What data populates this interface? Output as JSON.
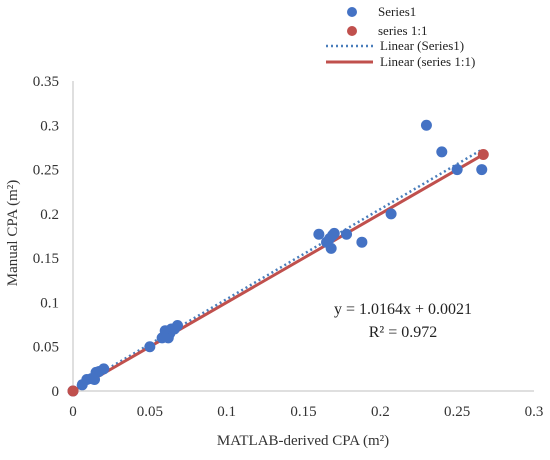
{
  "chart_data": {
    "type": "scatter",
    "xlabel": "MATLAB-derived CPA (m²)",
    "ylabel": "Manual CPA (m²)",
    "xlim": [
      0,
      0.3
    ],
    "ylim": [
      0,
      0.35
    ],
    "x_ticks": [
      "0",
      "0.05",
      "0.1",
      "0.15",
      "0.2",
      "0.25",
      "0.3"
    ],
    "y_ticks": [
      "0",
      "0.05",
      "0.1",
      "0.15",
      "0.2",
      "0.25",
      "0.3",
      "0.35"
    ],
    "grid": false,
    "legend_position": "top",
    "series": [
      {
        "name": "Series1",
        "kind": "markers",
        "color": "#4472c4",
        "points": [
          [
            0.0,
            0.0
          ],
          [
            0.006,
            0.007
          ],
          [
            0.009,
            0.013
          ],
          [
            0.012,
            0.014
          ],
          [
            0.014,
            0.013
          ],
          [
            0.015,
            0.021
          ],
          [
            0.017,
            0.022
          ],
          [
            0.02,
            0.025
          ],
          [
            0.05,
            0.05
          ],
          [
            0.058,
            0.06
          ],
          [
            0.06,
            0.068
          ],
          [
            0.062,
            0.06
          ],
          [
            0.063,
            0.065
          ],
          [
            0.064,
            0.07
          ],
          [
            0.066,
            0.07
          ],
          [
            0.068,
            0.074
          ],
          [
            0.16,
            0.177
          ],
          [
            0.165,
            0.168
          ],
          [
            0.167,
            0.172
          ],
          [
            0.168,
            0.161
          ],
          [
            0.169,
            0.176
          ],
          [
            0.17,
            0.178
          ],
          [
            0.178,
            0.177
          ],
          [
            0.188,
            0.168
          ],
          [
            0.207,
            0.2
          ],
          [
            0.23,
            0.3
          ],
          [
            0.24,
            0.27
          ],
          [
            0.25,
            0.25
          ],
          [
            0.266,
            0.25
          ]
        ]
      },
      {
        "name": "series 1:1",
        "kind": "markers",
        "color": "#c0504d",
        "points": [
          [
            0.0,
            0.0
          ],
          [
            0.267,
            0.267
          ]
        ]
      },
      {
        "name": "Linear (Series1)",
        "kind": "trendline",
        "style": "dotted",
        "color": "#4a7ebb",
        "slope": 1.0164,
        "intercept": 0.0021,
        "x_range": [
          0.0,
          0.265
        ]
      },
      {
        "name": "Linear (series 1:1)",
        "kind": "trendline",
        "style": "solid",
        "color": "#c0504d",
        "slope": 1.0,
        "intercept": 0.0,
        "x_range": [
          0.0,
          0.267
        ]
      }
    ],
    "annotations": [
      "y = 1.0164x + 0.0021",
      "R² = 0.972"
    ]
  }
}
